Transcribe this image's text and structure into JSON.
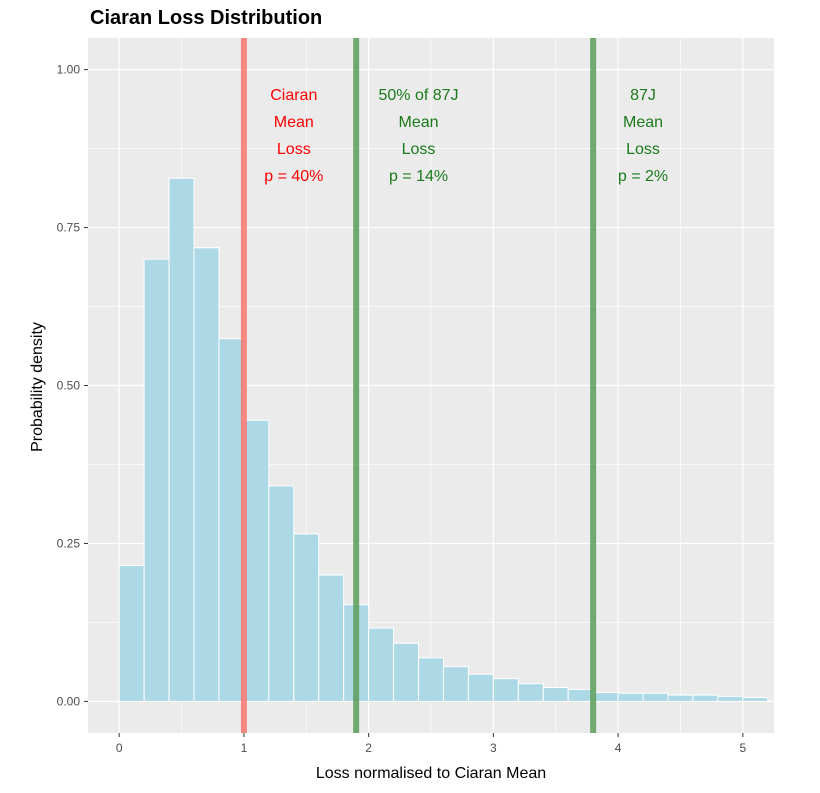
{
  "chart_data": {
    "type": "bar",
    "title": "Ciaran Loss Distribution",
    "xlabel": "Loss normalised to Ciaran Mean",
    "ylabel": "Probability density",
    "xlim": [
      -0.25,
      5.25
    ],
    "ylim": [
      -0.05,
      1.05
    ],
    "xticks": [
      0,
      1,
      2,
      3,
      4,
      5
    ],
    "yticks": [
      0.0,
      0.25,
      0.5,
      0.75,
      1.0
    ],
    "ytick_labels": [
      "0.00",
      "0.25",
      "0.50",
      "0.75",
      "1.00"
    ],
    "bin_width": 0.2,
    "bins": [
      {
        "x0": 0.0,
        "x1": 0.2,
        "density": 0.215
      },
      {
        "x0": 0.2,
        "x1": 0.4,
        "density": 0.7
      },
      {
        "x0": 0.4,
        "x1": 0.6,
        "density": 0.828
      },
      {
        "x0": 0.6,
        "x1": 0.8,
        "density": 0.718
      },
      {
        "x0": 0.8,
        "x1": 1.0,
        "density": 0.574
      },
      {
        "x0": 1.0,
        "x1": 1.2,
        "density": 0.445
      },
      {
        "x0": 1.2,
        "x1": 1.4,
        "density": 0.341
      },
      {
        "x0": 1.4,
        "x1": 1.6,
        "density": 0.265
      },
      {
        "x0": 1.6,
        "x1": 1.8,
        "density": 0.2
      },
      {
        "x0": 1.8,
        "x1": 2.0,
        "density": 0.153
      },
      {
        "x0": 2.0,
        "x1": 2.2,
        "density": 0.116
      },
      {
        "x0": 2.2,
        "x1": 2.4,
        "density": 0.092
      },
      {
        "x0": 2.4,
        "x1": 2.6,
        "density": 0.069
      },
      {
        "x0": 2.6,
        "x1": 2.8,
        "density": 0.055
      },
      {
        "x0": 2.8,
        "x1": 3.0,
        "density": 0.043
      },
      {
        "x0": 3.0,
        "x1": 3.2,
        "density": 0.036
      },
      {
        "x0": 3.2,
        "x1": 3.4,
        "density": 0.028
      },
      {
        "x0": 3.4,
        "x1": 3.6,
        "density": 0.022
      },
      {
        "x0": 3.6,
        "x1": 3.8,
        "density": 0.019
      },
      {
        "x0": 3.8,
        "x1": 4.0,
        "density": 0.014
      },
      {
        "x0": 4.0,
        "x1": 4.2,
        "density": 0.013
      },
      {
        "x0": 4.2,
        "x1": 4.4,
        "density": 0.013
      },
      {
        "x0": 4.4,
        "x1": 4.6,
        "density": 0.01
      },
      {
        "x0": 4.6,
        "x1": 4.8,
        "density": 0.01
      },
      {
        "x0": 4.8,
        "x1": 5.0,
        "density": 0.008
      },
      {
        "x0": 5.0,
        "x1": 5.2,
        "density": 0.006
      }
    ],
    "vlines": [
      {
        "name": "ciaran-mean-line",
        "x": 1.0,
        "color": "#f8766d"
      },
      {
        "name": "fifty-pct-87j-line",
        "x": 1.9,
        "color": "#5a9e5a"
      },
      {
        "name": "87j-mean-line",
        "x": 3.8,
        "color": "#5a9e5a"
      }
    ],
    "annotations": [
      {
        "name": "ciaran-mean-annotation",
        "x": 1.4,
        "color": "#ff0000",
        "lines": [
          "Ciaran",
          "Mean",
          "Loss",
          "p = 40%"
        ]
      },
      {
        "name": "fifty-pct-87j-annotation",
        "x": 2.4,
        "color": "#1a7a1a",
        "lines": [
          "50% of 87J",
          "Mean",
          "Loss",
          "p = 14%"
        ]
      },
      {
        "name": "87j-mean-annotation",
        "x": 4.2,
        "color": "#1a7a1a",
        "lines": [
          "87J",
          "Mean",
          "Loss",
          "p = 2%"
        ]
      }
    ],
    "colors": {
      "panel_bg": "#ebebeb",
      "grid_major": "#ffffff",
      "bar_fill": "#add8e6",
      "bar_outline": "#ffffff"
    }
  }
}
